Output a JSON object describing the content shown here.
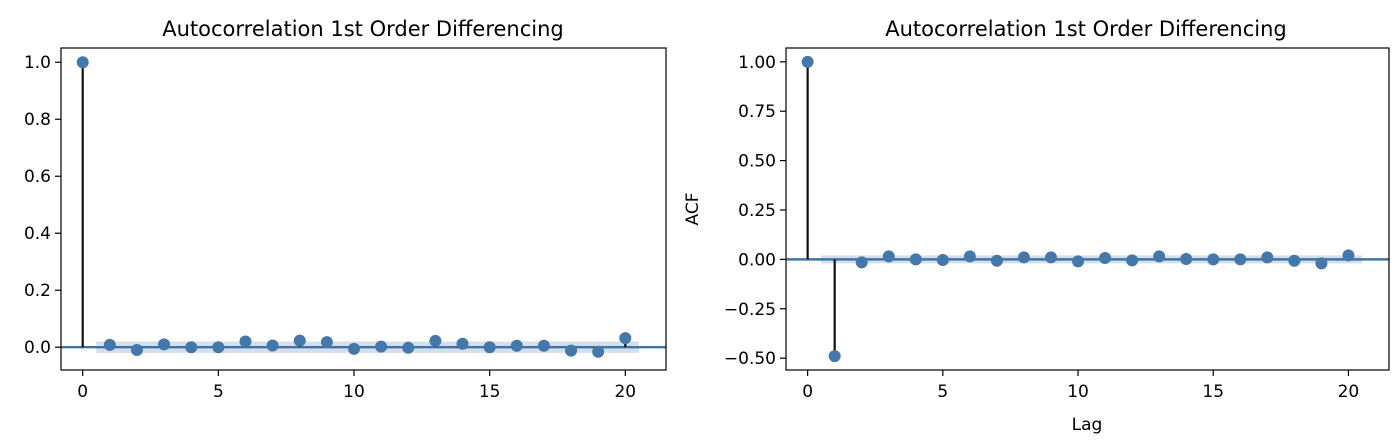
{
  "chart_data": [
    {
      "type": "stem",
      "title": "Autocorrelation 1st Order Differencing",
      "xlabel": "",
      "ylabel": "",
      "xlim": [
        -0.8,
        21.5
      ],
      "ylim": [
        -0.08,
        1.05
      ],
      "xticks": [
        0,
        5,
        10,
        15,
        20
      ],
      "xtick_labels": [
        "0",
        "5",
        "10",
        "15",
        "20"
      ],
      "yticks": [
        0.0,
        0.2,
        0.4,
        0.6,
        0.8,
        1.0
      ],
      "ytick_labels": [
        "0.0",
        "0.2",
        "0.4",
        "0.6",
        "0.8",
        "1.0"
      ],
      "x": [
        0,
        1,
        2,
        3,
        4,
        5,
        6,
        7,
        8,
        9,
        10,
        11,
        12,
        13,
        14,
        15,
        16,
        17,
        18,
        19,
        20
      ],
      "values": [
        1.0,
        0.008,
        -0.01,
        0.01,
        0.0,
        0.0,
        0.02,
        0.006,
        0.023,
        0.018,
        -0.006,
        0.002,
        -0.002,
        0.022,
        0.012,
        0.0,
        0.005,
        0.005,
        -0.012,
        -0.016,
        0.032
      ],
      "confidence_band": [
        0.02,
        0.02,
        0.02,
        0.02,
        0.02,
        0.02,
        0.02,
        0.02,
        0.02,
        0.02,
        0.02,
        0.02,
        0.02,
        0.02,
        0.02,
        0.02,
        0.02,
        0.02,
        0.02,
        0.02,
        0.02
      ],
      "grid": false,
      "colors": {
        "marker": "#4477aa",
        "stem": "#111111",
        "zero_line": "#3f74a6",
        "band": "#b0c4de"
      }
    },
    {
      "type": "stem",
      "title": "Autocorrelation 1st Order Differencing",
      "xlabel": "Lag",
      "ylabel": "ACF",
      "xlim": [
        -0.8,
        21.5
      ],
      "ylim": [
        -0.56,
        1.07
      ],
      "xticks": [
        0,
        5,
        10,
        15,
        20
      ],
      "xtick_labels": [
        "0",
        "5",
        "10",
        "15",
        "20"
      ],
      "yticks": [
        -0.5,
        -0.25,
        0.0,
        0.25,
        0.5,
        0.75,
        1.0
      ],
      "ytick_labels": [
        "−0.50",
        "−0.25",
        "0.00",
        "0.25",
        "0.50",
        "0.75",
        "1.00"
      ],
      "x": [
        0,
        1,
        2,
        3,
        4,
        5,
        6,
        7,
        8,
        9,
        10,
        11,
        12,
        13,
        14,
        15,
        16,
        17,
        18,
        19,
        20
      ],
      "values": [
        1.0,
        -0.49,
        -0.015,
        0.015,
        0.0,
        -0.003,
        0.015,
        -0.007,
        0.01,
        0.01,
        -0.01,
        0.007,
        -0.005,
        0.015,
        0.002,
        0.0,
        0.0,
        0.01,
        -0.007,
        -0.02,
        0.02
      ],
      "confidence_band": [
        0.02,
        0.02,
        0.02,
        0.02,
        0.02,
        0.02,
        0.02,
        0.02,
        0.02,
        0.02,
        0.02,
        0.02,
        0.02,
        0.02,
        0.02,
        0.02,
        0.02,
        0.02,
        0.02,
        0.02,
        0.02
      ],
      "grid": false,
      "colors": {
        "marker": "#4477aa",
        "stem": "#111111",
        "zero_line": "#3f74a6",
        "band": "#b0c4de"
      }
    }
  ]
}
